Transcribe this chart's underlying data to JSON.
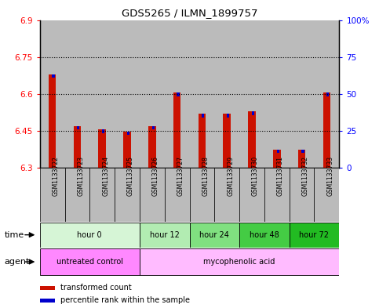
{
  "title": "GDS5265 / ILMN_1899757",
  "samples": [
    "GSM1133722",
    "GSM1133723",
    "GSM1133724",
    "GSM1133725",
    "GSM1133726",
    "GSM1133727",
    "GSM1133728",
    "GSM1133729",
    "GSM1133730",
    "GSM1133731",
    "GSM1133732",
    "GSM1133733"
  ],
  "red_values": [
    6.68,
    6.47,
    6.455,
    6.448,
    6.47,
    6.605,
    6.52,
    6.52,
    6.53,
    6.375,
    6.375,
    6.605
  ],
  "blue_values": [
    63,
    35,
    32,
    22,
    35,
    54,
    43,
    43,
    45,
    17,
    17,
    50
  ],
  "ylim_left": [
    6.3,
    6.9
  ],
  "ylim_right": [
    0,
    100
  ],
  "yticks_left": [
    6.3,
    6.45,
    6.6,
    6.75,
    6.9
  ],
  "yticks_right": [
    0,
    25,
    50,
    75,
    100
  ],
  "ytick_labels_left": [
    "6.3",
    "6.45",
    "6.6",
    "6.75",
    "6.9"
  ],
  "ytick_labels_right": [
    "0",
    "25",
    "50",
    "75",
    "100%"
  ],
  "grid_values": [
    6.45,
    6.6,
    6.75
  ],
  "time_groups": [
    {
      "label": "hour 0",
      "start": 0,
      "end": 4,
      "color": "#d6f5d6"
    },
    {
      "label": "hour 12",
      "start": 4,
      "end": 6,
      "color": "#b2ecb2"
    },
    {
      "label": "hour 24",
      "start": 6,
      "end": 8,
      "color": "#80e080"
    },
    {
      "label": "hour 48",
      "start": 8,
      "end": 10,
      "color": "#44cc44"
    },
    {
      "label": "hour 72",
      "start": 10,
      "end": 12,
      "color": "#22bb22"
    }
  ],
  "agent_groups": [
    {
      "label": "untreated control",
      "start": 0,
      "end": 4,
      "color": "#ff88ff"
    },
    {
      "label": "mycophenolic acid",
      "start": 4,
      "end": 12,
      "color": "#ffbbff"
    }
  ],
  "bar_color_red": "#cc1100",
  "bar_color_blue": "#0000cc",
  "sample_bg_color": "#bbbbbb",
  "plot_bg_color": "#ffffff",
  "base_value": 6.3,
  "spine_color": "#000000"
}
